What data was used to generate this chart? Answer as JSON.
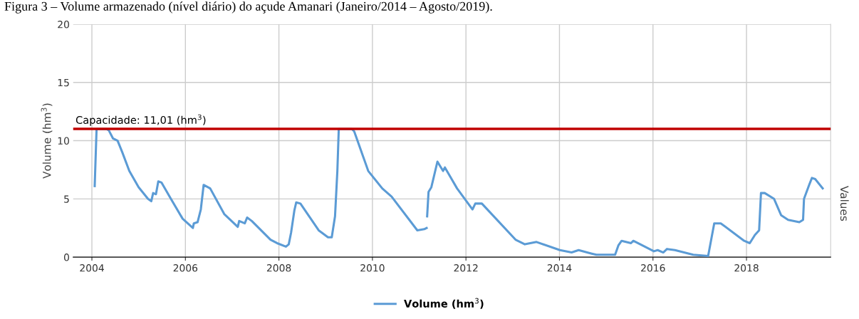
{
  "chart_data": {
    "type": "line",
    "title": "Figura 3 – Volume armazenado (nível diário) do açude Amanari (Janeiro/2014 – Agosto/2019).",
    "ylabel": "Volume (hm$^{3}$)",
    "y2label": "Values",
    "series": [
      {
        "name": "Volume (hm$^{3}$)",
        "color": "#5b9bd5",
        "x": [
          2004.06,
          2004.1,
          2004.31,
          2004.36,
          2004.45,
          2004.55,
          2004.65,
          2004.8,
          2005.0,
          2005.2,
          2005.27,
          2005.31,
          2005.37,
          2005.42,
          2005.49,
          2005.69,
          2005.94,
          2006.16,
          2006.18,
          2006.26,
          2006.33,
          2006.39,
          2006.53,
          2006.83,
          2007.12,
          2007.15,
          2007.27,
          2007.32,
          2007.42,
          2007.82,
          2007.96,
          2008.15,
          2008.21,
          2008.26,
          2008.33,
          2008.37,
          2008.46,
          2008.85,
          2009.05,
          2009.13,
          2009.2,
          2009.25,
          2009.28,
          2009.56,
          2009.61,
          2009.91,
          2010.21,
          2010.41,
          2010.96,
          2011.11,
          2011.16,
          2011.165,
          2011.17,
          2011.2,
          2011.26,
          2011.39,
          2011.51,
          2011.55,
          2011.81,
          2012.14,
          2012.2,
          2012.34,
          2013.06,
          2013.26,
          2013.51,
          2014.01,
          2014.26,
          2014.41,
          2014.69,
          2014.79,
          2015.19,
          2015.26,
          2015.33,
          2015.53,
          2015.58,
          2016.02,
          2016.1,
          2016.22,
          2016.3,
          2016.47,
          2016.86,
          2017.18,
          2017.31,
          2017.45,
          2017.95,
          2018.07,
          2018.18,
          2018.27,
          2018.31,
          2018.39,
          2018.59,
          2018.74,
          2018.89,
          2019.13,
          2019.21,
          2019.23,
          2019.35,
          2019.4,
          2019.47,
          2019.63
        ],
        "values": [
          6.1,
          11.0,
          11.0,
          10.9,
          10.2,
          10.0,
          9.0,
          7.4,
          6.0,
          5.0,
          4.8,
          5.5,
          5.4,
          6.5,
          6.4,
          5.0,
          3.3,
          2.5,
          2.9,
          3.0,
          4.1,
          6.2,
          5.9,
          3.7,
          2.6,
          3.1,
          2.9,
          3.4,
          3.1,
          1.5,
          1.2,
          0.9,
          1.1,
          2.1,
          4.0,
          4.7,
          4.6,
          2.3,
          1.7,
          1.7,
          3.5,
          7.4,
          11.0,
          11.0,
          10.8,
          7.4,
          5.9,
          5.2,
          2.3,
          2.4,
          2.5,
          null,
          3.5,
          5.6,
          6.0,
          8.2,
          7.4,
          7.7,
          5.9,
          4.1,
          4.6,
          4.6,
          1.5,
          1.1,
          1.3,
          0.6,
          0.4,
          0.6,
          0.3,
          0.2,
          0.2,
          1.0,
          1.4,
          1.2,
          1.4,
          0.5,
          0.6,
          0.4,
          0.7,
          0.6,
          0.2,
          0.1,
          2.9,
          2.9,
          1.4,
          1.2,
          1.9,
          2.3,
          5.5,
          5.5,
          5.0,
          3.6,
          3.2,
          3.0,
          3.2,
          5.0,
          6.3,
          6.8,
          6.7,
          5.9
        ]
      }
    ],
    "xlim": [
      2003.6,
      2019.8
    ],
    "xticks": [
      2004,
      2006,
      2008,
      2010,
      2012,
      2014,
      2016,
      2018
    ],
    "ylim": [
      0,
      20
    ],
    "yticks": [
      0,
      5,
      10,
      15,
      20
    ],
    "ref_lines": [
      {
        "axis": "y",
        "value": 11.01,
        "label": "Capacidade: 11,01 (hm$^{3}$)",
        "color": "#c00000"
      }
    ],
    "grid": true,
    "legend": "bottom"
  }
}
